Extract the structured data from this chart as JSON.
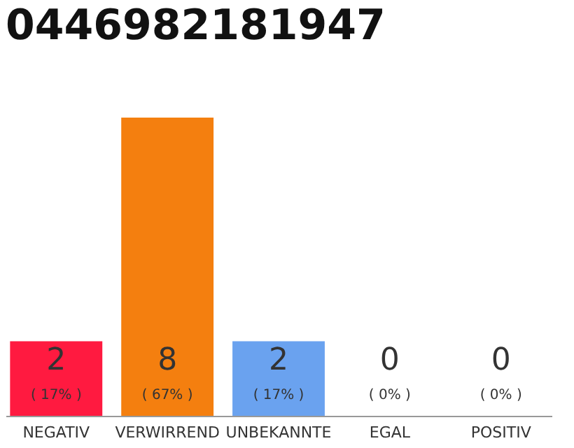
{
  "chart_data": {
    "type": "bar",
    "title": "0446982181947",
    "categories": [
      "NEGATIV",
      "VERWIRREND",
      "UNBEKANNTE",
      "EGAL",
      "POSITIV"
    ],
    "values": [
      2,
      8,
      2,
      0,
      0
    ],
    "colors": [
      "#ff1a40",
      "#f47f0f",
      "#6aa2ef",
      "#cccccc",
      "#cccccc"
    ],
    "ylim": [
      0,
      8
    ],
    "data_labels": true,
    "tick_labels": "x",
    "grid": false,
    "annotations": [
      "( 17% )",
      "( 67% )",
      "( 17% )",
      "( 0% )",
      "( 0% )"
    ]
  }
}
